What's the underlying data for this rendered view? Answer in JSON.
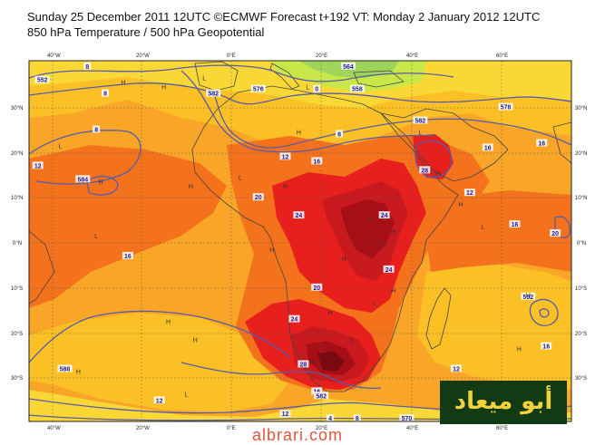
{
  "header": {
    "line1": "Sunday 25 December 2011 12UTC ©ECMWF Forecast t+192 VT: Monday 2 January 2012 12UTC",
    "line2": "850 hPa Temperature / 500 hPa Geopotential"
  },
  "axes": {
    "top_lon": [
      "40°W",
      "20°W",
      "0°E",
      "20°E",
      "40°E",
      "60°E"
    ],
    "bottom_lon": [
      "40°W",
      "20°W",
      "0°E",
      "20°E",
      "40°E",
      "60°E"
    ],
    "left_lat": [
      "30°N",
      "20°N",
      "10°N",
      "0°N",
      "10°S",
      "20°S",
      "30°S"
    ],
    "right_lat": [
      "30°N",
      "20°N",
      "10°N",
      "0°N",
      "10°S",
      "20°S",
      "30°S"
    ]
  },
  "contour_labels": [
    {
      "text": "8",
      "lon": -32,
      "lat": 39
    },
    {
      "text": "552",
      "lon": -42,
      "lat": 36
    },
    {
      "text": "8",
      "lon": -28,
      "lat": 33
    },
    {
      "text": "8",
      "lon": -30,
      "lat": 25
    },
    {
      "text": "12",
      "lon": -43,
      "lat": 17
    },
    {
      "text": "584",
      "lon": -33,
      "lat": 14
    },
    {
      "text": "582",
      "lon": -4,
      "lat": 33
    },
    {
      "text": "576",
      "lon": 6,
      "lat": 34
    },
    {
      "text": "12",
      "lon": 12,
      "lat": 19
    },
    {
      "text": "16",
      "lon": 19,
      "lat": 18
    },
    {
      "text": "558",
      "lon": 28,
      "lat": 34
    },
    {
      "text": "564",
      "lon": 26,
      "lat": 39
    },
    {
      "text": "0",
      "lon": 19,
      "lat": 34
    },
    {
      "text": "8",
      "lon": 24,
      "lat": 24
    },
    {
      "text": "582",
      "lon": 42,
      "lat": 27
    },
    {
      "text": "578",
      "lon": 61,
      "lat": 30
    },
    {
      "text": "16",
      "lon": 57,
      "lat": 21
    },
    {
      "text": "16",
      "lon": 69,
      "lat": 22
    },
    {
      "text": "28",
      "lon": 43,
      "lat": 16
    },
    {
      "text": "12",
      "lon": 53,
      "lat": 11
    },
    {
      "text": "20",
      "lon": 6,
      "lat": 10
    },
    {
      "text": "24",
      "lon": 15,
      "lat": 6
    },
    {
      "text": "24",
      "lon": 34,
      "lat": 6
    },
    {
      "text": "16",
      "lon": 63,
      "lat": 4
    },
    {
      "text": "20",
      "lon": 72,
      "lat": 2
    },
    {
      "text": "16",
      "lon": -23,
      "lat": -3
    },
    {
      "text": "20",
      "lon": 19,
      "lat": -10
    },
    {
      "text": "24",
      "lon": 35,
      "lat": -6
    },
    {
      "text": "24",
      "lon": 14,
      "lat": -17
    },
    {
      "text": "28",
      "lon": 16,
      "lat": -27
    },
    {
      "text": "592",
      "lon": 66,
      "lat": -12
    },
    {
      "text": "16",
      "lon": 70,
      "lat": -23
    },
    {
      "text": "12",
      "lon": 50,
      "lat": -28
    },
    {
      "text": "588",
      "lon": -37,
      "lat": -28
    },
    {
      "text": "12",
      "lon": -16,
      "lat": -35
    },
    {
      "text": "16",
      "lon": 19,
      "lat": -33
    },
    {
      "text": "582",
      "lon": 20,
      "lat": -34
    },
    {
      "text": "4",
      "lon": 22,
      "lat": -39
    },
    {
      "text": "8",
      "lon": 28,
      "lat": -39
    },
    {
      "text": "570",
      "lon": 39,
      "lat": -39
    },
    {
      "text": "12",
      "lon": 12,
      "lat": -38
    }
  ],
  "pressure_centres": [
    {
      "text": "H",
      "lon": -24,
      "lat": 35
    },
    {
      "text": "H",
      "lon": -15,
      "lat": 34
    },
    {
      "text": "L",
      "lon": -6,
      "lat": 36
    },
    {
      "text": "L",
      "lon": 17,
      "lat": 34
    },
    {
      "text": "H",
      "lon": 15,
      "lat": 24
    },
    {
      "text": "L",
      "lon": 42,
      "lat": 24
    },
    {
      "text": "H",
      "lon": 12,
      "lat": 12
    },
    {
      "text": "H",
      "lon": -9,
      "lat": 12
    },
    {
      "text": "L",
      "lon": 2,
      "lat": 14
    },
    {
      "text": "H",
      "lon": -29,
      "lat": 13
    },
    {
      "text": "L",
      "lon": -38,
      "lat": 21
    },
    {
      "text": "L",
      "lon": -30,
      "lat": 1
    },
    {
      "text": "H",
      "lon": 36,
      "lat": 2
    },
    {
      "text": "L",
      "lon": 31,
      "lat": 5
    },
    {
      "text": "L",
      "lon": 34,
      "lat": -1
    },
    {
      "text": "H",
      "lon": 25,
      "lat": -4
    },
    {
      "text": "H",
      "lon": 36,
      "lat": -11
    },
    {
      "text": "L",
      "lon": 32,
      "lat": -14
    },
    {
      "text": "H",
      "lon": 22,
      "lat": -16
    },
    {
      "text": "L",
      "lon": 22,
      "lat": -24
    },
    {
      "text": "H",
      "lon": 18,
      "lat": -27
    },
    {
      "text": "H",
      "lon": -14,
      "lat": -18
    },
    {
      "text": "H",
      "lon": -8,
      "lat": -22
    },
    {
      "text": "L",
      "lon": 56,
      "lat": 3
    },
    {
      "text": "H",
      "lon": 51,
      "lat": 8
    },
    {
      "text": "H",
      "lon": -34,
      "lat": -29
    },
    {
      "text": "L",
      "lon": -10,
      "lat": -34
    },
    {
      "text": "H",
      "lon": 64,
      "lat": -24
    },
    {
      "text": "L",
      "lon": 27,
      "lat": -22
    },
    {
      "text": "H",
      "lon": 66,
      "lat": -12
    },
    {
      "text": "H",
      "lon": 9,
      "lat": -2
    },
    {
      "text": "H",
      "lon": 46,
      "lat": 15
    }
  ],
  "colors": {
    "band_8_12": "#f9d835",
    "band_12_16": "#fbc025",
    "band_16_20": "#f8a528",
    "band_20_24": "#f4721c",
    "band_24_28": "#e8201d",
    "band_28_32": "#c81a1e",
    "band_32_36": "#a50f15",
    "band_36_40": "#7a0a12",
    "band_40_plus": "#5e2b40",
    "cold_green": "#c8e84a",
    "contour": "#5a5aa8",
    "coast": "#444444",
    "logo_bg": "#123a14",
    "logo_text": "#f2d23a",
    "site_text": "#e0553a"
  },
  "logo": {
    "text": "أبو ميعاد"
  },
  "site": {
    "text": "albrari.com"
  }
}
